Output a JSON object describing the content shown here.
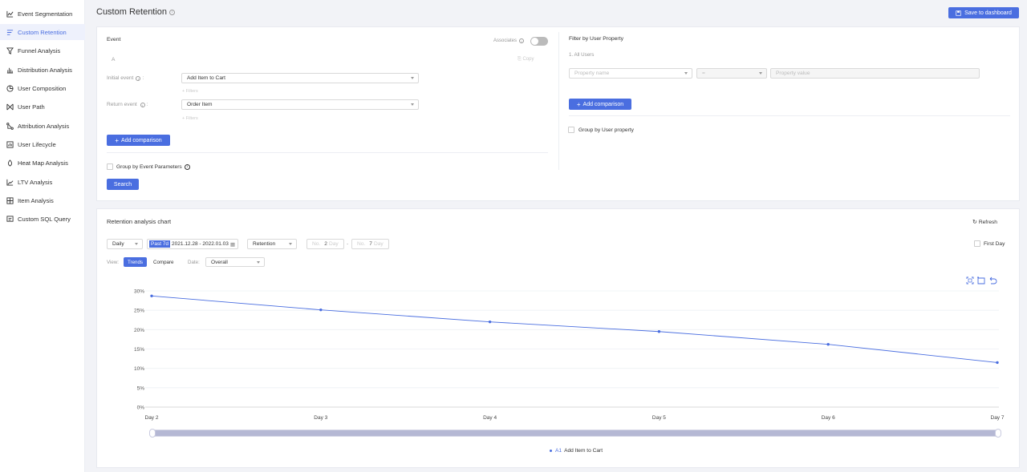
{
  "sidebar": {
    "items": [
      {
        "label": "Event Segmentation",
        "icon": "line-chart-icon"
      },
      {
        "label": "Custom Retention",
        "icon": "retention-icon",
        "active": true
      },
      {
        "label": "Funnel Analysis",
        "icon": "funnel-icon"
      },
      {
        "label": "Distribution Analysis",
        "icon": "distribution-icon"
      },
      {
        "label": "User Composition",
        "icon": "pie-icon"
      },
      {
        "label": "User Path",
        "icon": "path-icon"
      },
      {
        "label": "Attribution Analysis",
        "icon": "attribution-icon"
      },
      {
        "label": "User Lifecycle",
        "icon": "lifecycle-icon"
      },
      {
        "label": "Heat Map Analysis",
        "icon": "heatmap-icon"
      },
      {
        "label": "LTV Analysis",
        "icon": "ltv-icon"
      },
      {
        "label": "Item Analysis",
        "icon": "item-icon"
      },
      {
        "label": "Custom SQL Query",
        "icon": "sql-icon"
      }
    ]
  },
  "header": {
    "title": "Custom Retention",
    "save_label": "Save to dashboard"
  },
  "event_panel": {
    "title": "Event",
    "associates_label": "Associates",
    "group_letter": "A",
    "copy_label": "Copy",
    "initial_label": "Initial event",
    "initial_value": "Add Item to Cart",
    "initial_filter": "+ Filters",
    "return_label": "Return event",
    "return_value": "Order Item",
    "return_filter": "+ Filters",
    "add_comparison": "Add comparison",
    "group_by_label": "Group by Event Parameters",
    "search_label": "Search"
  },
  "filter_panel": {
    "title": "Filter by User Property",
    "all_users": "1. All Users",
    "property_name_placeholder": "Property name",
    "operator_value": "=",
    "property_value_placeholder": "Property value",
    "add_comparison": "Add comparison",
    "group_by_label": "Group by User property"
  },
  "chart_panel": {
    "title": "Retention analysis chart",
    "refresh_label": "Refresh",
    "granularity": "Daily",
    "date_badge": "Past 7d",
    "date_range": "2021.12.28 - 2022.01.03",
    "metric": "Retention",
    "no_label_1": "No.",
    "day_from": "2",
    "day_unit_1": "Day",
    "range_dash": "-",
    "no_label_2": "No.",
    "day_to": "7",
    "day_unit_2": "Day",
    "first_day_label": "First Day",
    "view_label": "View:",
    "trends_tab": "Trends",
    "compare_tab": "Compare",
    "date_label": "Date:",
    "date_value": "Overall"
  },
  "chart_data": {
    "type": "line",
    "x": [
      "Day 2",
      "Day 3",
      "Day 4",
      "Day 5",
      "Day 6",
      "Day 7"
    ],
    "series": [
      {
        "name": "A1 Add Item to Cart",
        "values": [
          28.7,
          25.1,
          22.0,
          19.5,
          16.2,
          11.5
        ]
      }
    ],
    "ylim": [
      0,
      30
    ],
    "yticks": [
      "0%",
      "5%",
      "10%",
      "15%",
      "20%",
      "25%",
      "30%"
    ],
    "grid": true,
    "legend_position": "bottom-center",
    "color": "#4a6ee0"
  },
  "legend": {
    "marker": "A1",
    "label": "Add Item to Cart"
  }
}
